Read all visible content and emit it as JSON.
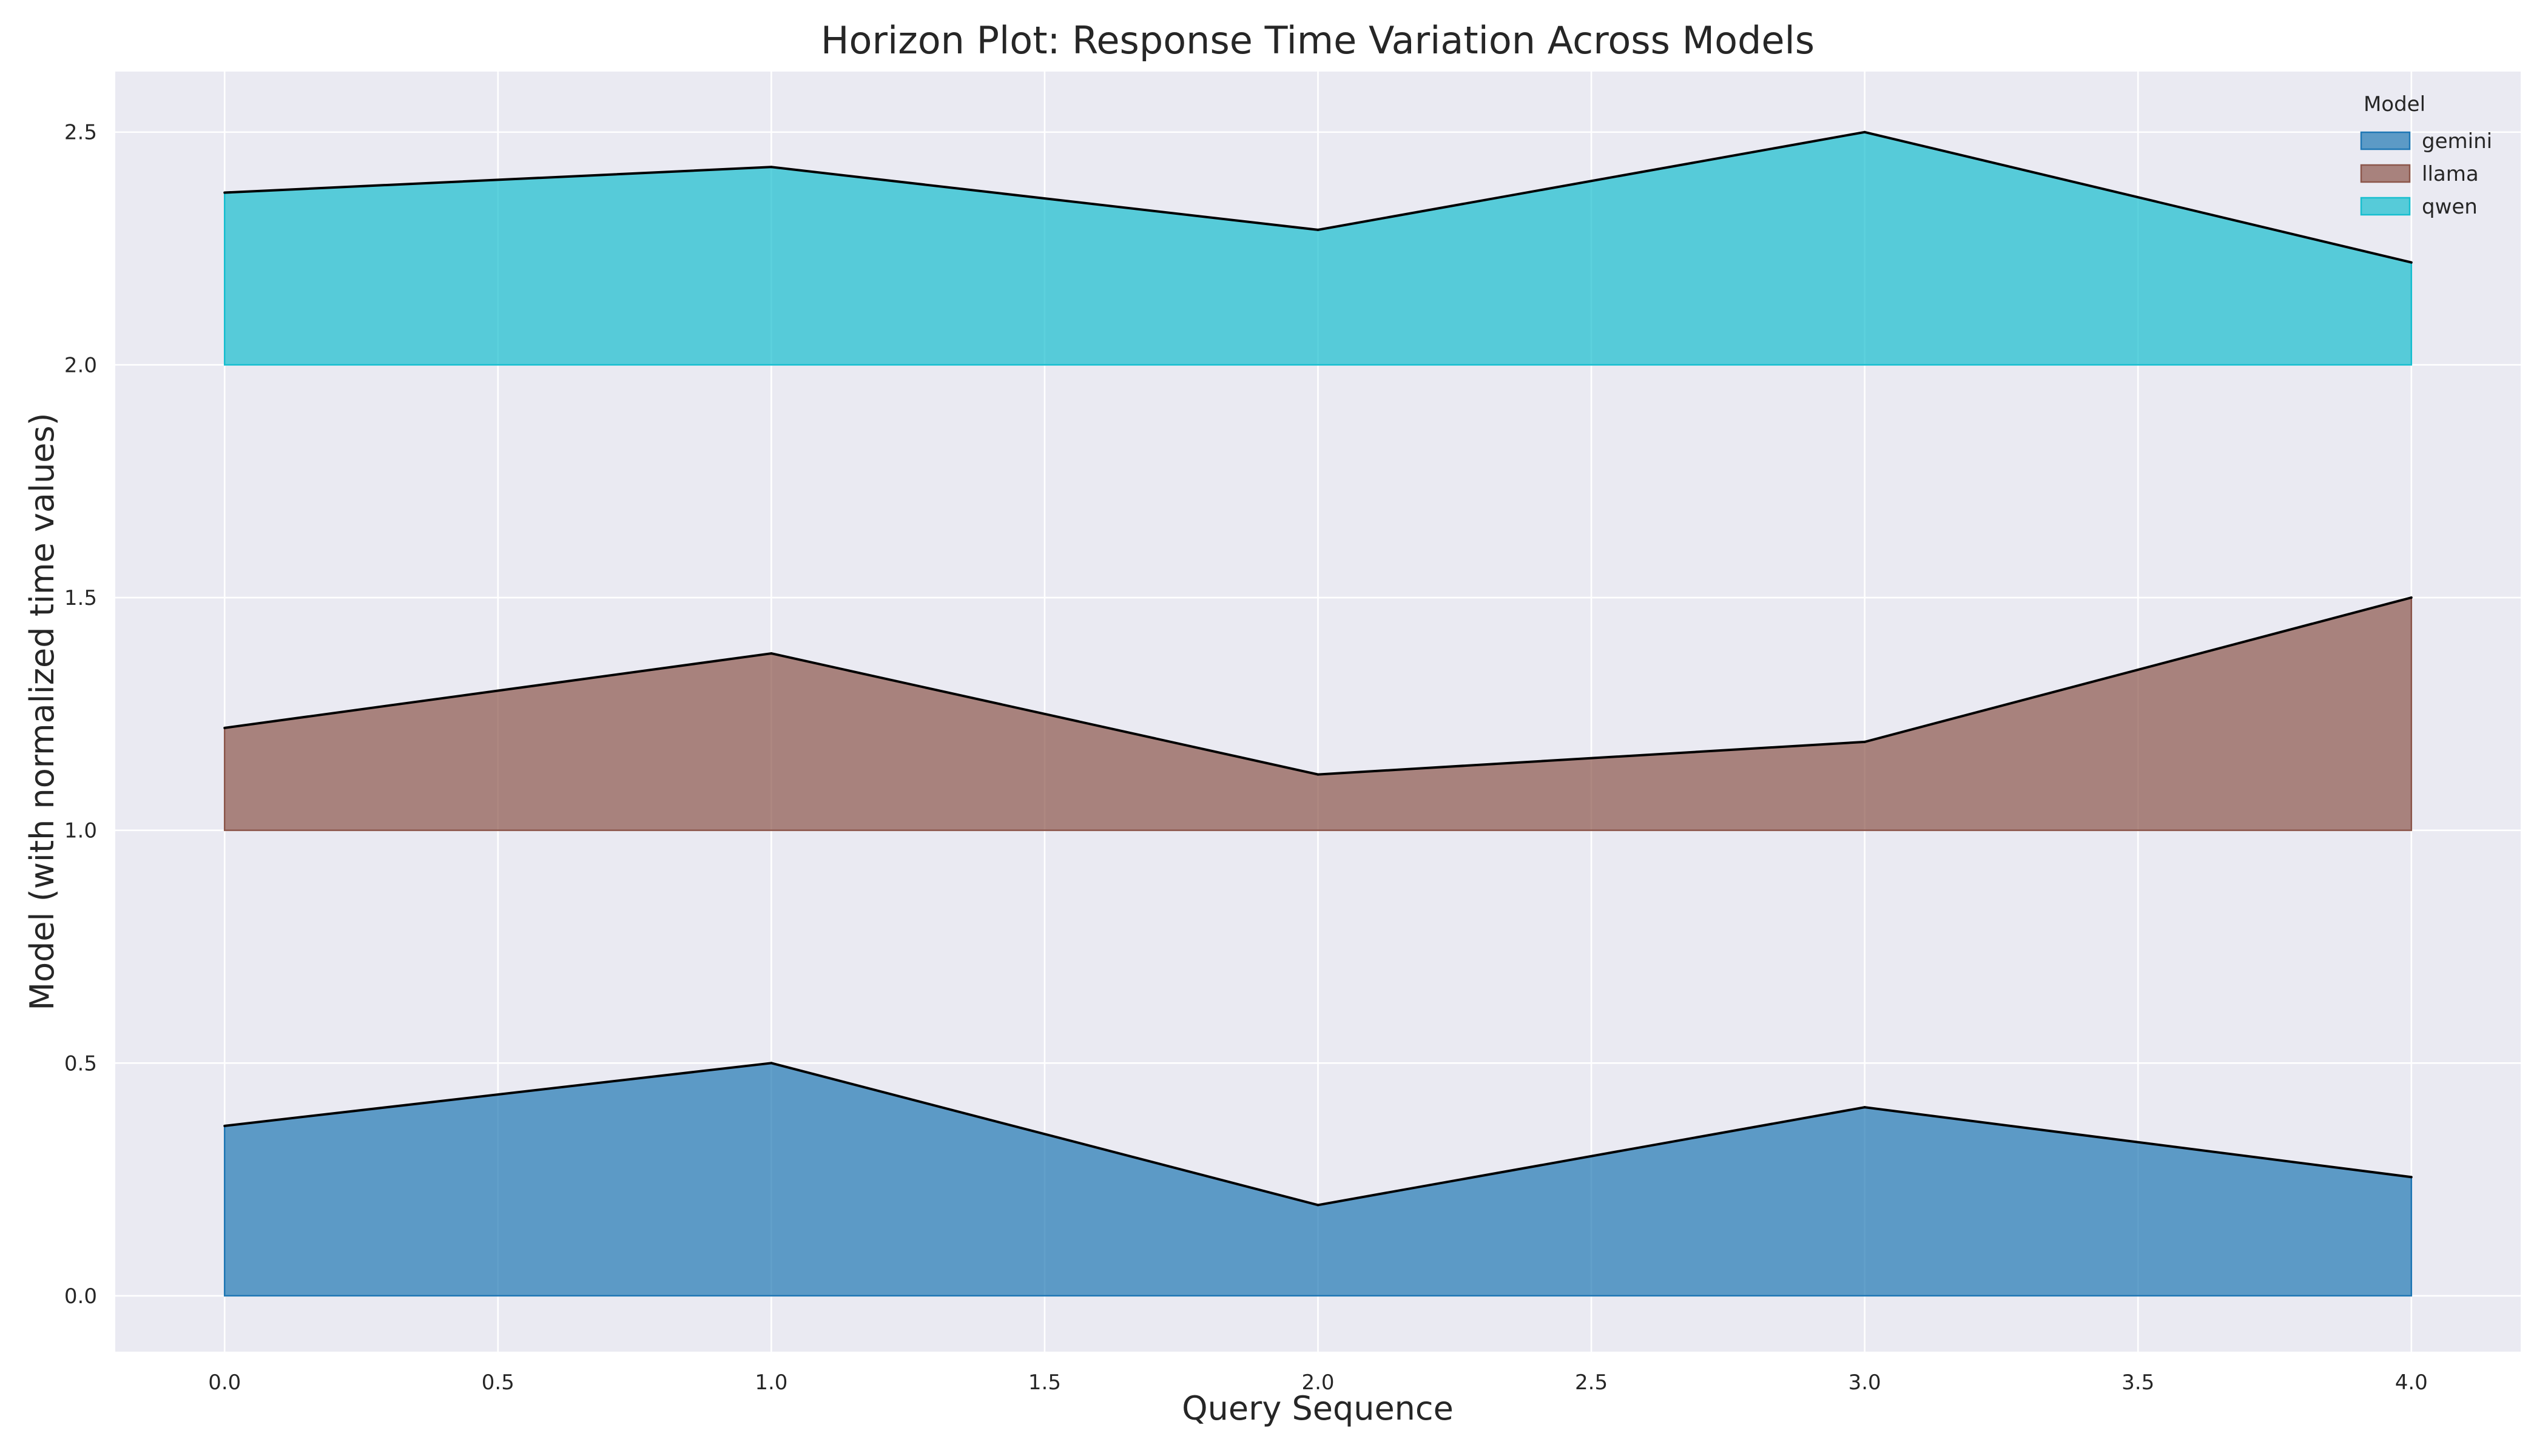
{
  "chart_data": {
    "type": "area",
    "title": "Horizon Plot: Response Time Variation Across Models",
    "xlabel": "Query Sequence",
    "ylabel": "Model (with normalized time values)",
    "xlim": [
      -0.2,
      4.2
    ],
    "ylim": [
      -0.12,
      2.63
    ],
    "x_ticks": [
      "0.0",
      "0.5",
      "1.0",
      "1.5",
      "2.0",
      "2.5",
      "3.0",
      "3.5",
      "4.0"
    ],
    "y_ticks": [
      "0.0",
      "0.5",
      "1.0",
      "1.5",
      "2.0",
      "2.5"
    ],
    "grid": true,
    "legend_title": "Model",
    "legend_position": "top-right",
    "x": [
      0,
      1,
      2,
      3,
      4
    ],
    "series": [
      {
        "name": "gemini",
        "baseline": 0,
        "color": "#1f77b4",
        "values": [
          0.365,
          0.5,
          0.195,
          0.405,
          0.255
        ]
      },
      {
        "name": "llama",
        "baseline": 1,
        "color": "#8c564b",
        "values": [
          1.22,
          1.38,
          1.12,
          1.19,
          1.5
        ]
      },
      {
        "name": "qwen",
        "baseline": 2,
        "color": "#17becf",
        "values": [
          2.37,
          2.425,
          2.29,
          2.5,
          2.22
        ]
      }
    ]
  }
}
